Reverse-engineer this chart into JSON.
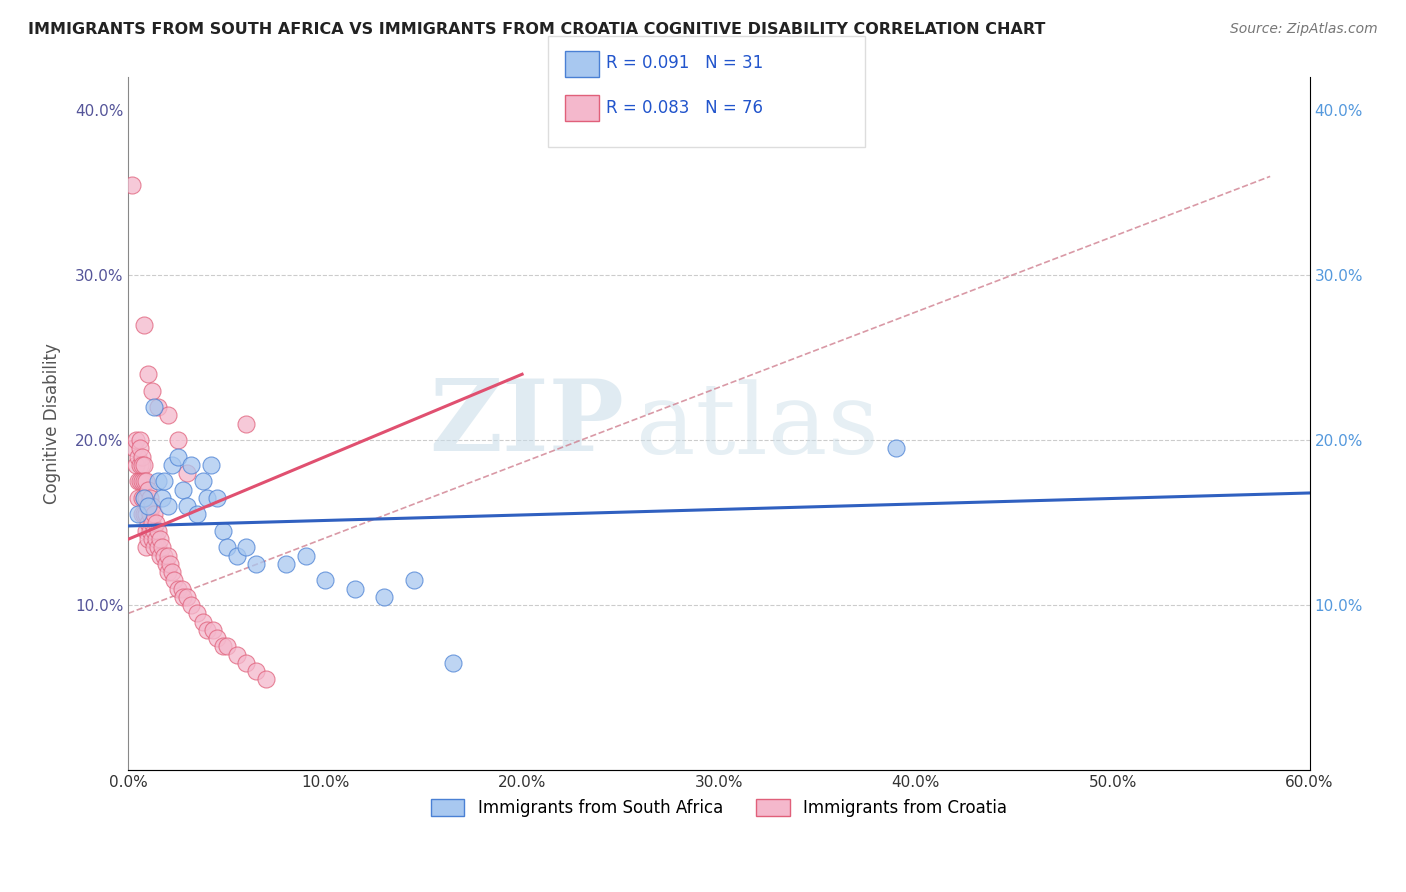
{
  "title": "IMMIGRANTS FROM SOUTH AFRICA VS IMMIGRANTS FROM CROATIA COGNITIVE DISABILITY CORRELATION CHART",
  "source": "Source: ZipAtlas.com",
  "ylabel": "Cognitive Disability",
  "legend_label_blue": "Immigrants from South Africa",
  "legend_label_pink": "Immigrants from Croatia",
  "R_blue": 0.091,
  "N_blue": 31,
  "R_pink": 0.083,
  "N_pink": 76,
  "xlim": [
    0.0,
    0.6
  ],
  "ylim": [
    0.0,
    0.42
  ],
  "xticks": [
    0.0,
    0.1,
    0.2,
    0.3,
    0.4,
    0.5,
    0.6
  ],
  "yticks": [
    0.0,
    0.1,
    0.2,
    0.3,
    0.4
  ],
  "color_blue_fill": "#a8c8f0",
  "color_pink_fill": "#f4b8cc",
  "color_blue_edge": "#4a80d4",
  "color_pink_edge": "#e0607a",
  "color_blue_line": "#3060c0",
  "color_pink_line": "#e05070",
  "color_dashed": "#d08090",
  "watermark_zip": "ZIP",
  "watermark_atlas": "atlas",
  "blue_points_x": [
    0.005,
    0.008,
    0.01,
    0.013,
    0.015,
    0.017,
    0.018,
    0.02,
    0.022,
    0.025,
    0.028,
    0.03,
    0.032,
    0.035,
    0.038,
    0.04,
    0.042,
    0.045,
    0.048,
    0.05,
    0.055,
    0.06,
    0.065,
    0.08,
    0.09,
    0.1,
    0.115,
    0.13,
    0.145,
    0.165,
    0.39
  ],
  "blue_points_y": [
    0.155,
    0.165,
    0.16,
    0.22,
    0.175,
    0.165,
    0.175,
    0.16,
    0.185,
    0.19,
    0.17,
    0.16,
    0.185,
    0.155,
    0.175,
    0.165,
    0.185,
    0.165,
    0.145,
    0.135,
    0.13,
    0.135,
    0.125,
    0.125,
    0.13,
    0.115,
    0.11,
    0.105,
    0.115,
    0.065,
    0.195
  ],
  "pink_points_x": [
    0.002,
    0.003,
    0.004,
    0.004,
    0.005,
    0.005,
    0.005,
    0.006,
    0.006,
    0.006,
    0.006,
    0.007,
    0.007,
    0.007,
    0.007,
    0.007,
    0.008,
    0.008,
    0.008,
    0.008,
    0.009,
    0.009,
    0.009,
    0.009,
    0.009,
    0.01,
    0.01,
    0.01,
    0.01,
    0.011,
    0.011,
    0.011,
    0.012,
    0.012,
    0.012,
    0.013,
    0.013,
    0.013,
    0.014,
    0.014,
    0.015,
    0.015,
    0.016,
    0.016,
    0.017,
    0.018,
    0.019,
    0.02,
    0.02,
    0.021,
    0.022,
    0.023,
    0.025,
    0.027,
    0.028,
    0.03,
    0.032,
    0.035,
    0.038,
    0.04,
    0.043,
    0.045,
    0.048,
    0.05,
    0.055,
    0.06,
    0.065,
    0.07,
    0.008,
    0.01,
    0.012,
    0.015,
    0.02,
    0.025,
    0.03,
    0.06
  ],
  "pink_points_y": [
    0.355,
    0.195,
    0.2,
    0.185,
    0.19,
    0.175,
    0.165,
    0.2,
    0.195,
    0.185,
    0.175,
    0.19,
    0.185,
    0.175,
    0.165,
    0.155,
    0.185,
    0.175,
    0.165,
    0.155,
    0.175,
    0.165,
    0.155,
    0.145,
    0.135,
    0.17,
    0.16,
    0.15,
    0.14,
    0.165,
    0.155,
    0.145,
    0.16,
    0.15,
    0.14,
    0.155,
    0.145,
    0.135,
    0.15,
    0.14,
    0.145,
    0.135,
    0.14,
    0.13,
    0.135,
    0.13,
    0.125,
    0.13,
    0.12,
    0.125,
    0.12,
    0.115,
    0.11,
    0.11,
    0.105,
    0.105,
    0.1,
    0.095,
    0.09,
    0.085,
    0.085,
    0.08,
    0.075,
    0.075,
    0.07,
    0.065,
    0.06,
    0.055,
    0.27,
    0.24,
    0.23,
    0.22,
    0.215,
    0.2,
    0.18,
    0.21
  ],
  "blue_line_x": [
    0.0,
    0.6
  ],
  "blue_line_y": [
    0.148,
    0.168
  ],
  "pink_line_x": [
    0.0,
    0.2
  ],
  "pink_line_y": [
    0.14,
    0.24
  ],
  "dashed_line_x": [
    0.0,
    0.58
  ],
  "dashed_line_y": [
    0.095,
    0.36
  ]
}
